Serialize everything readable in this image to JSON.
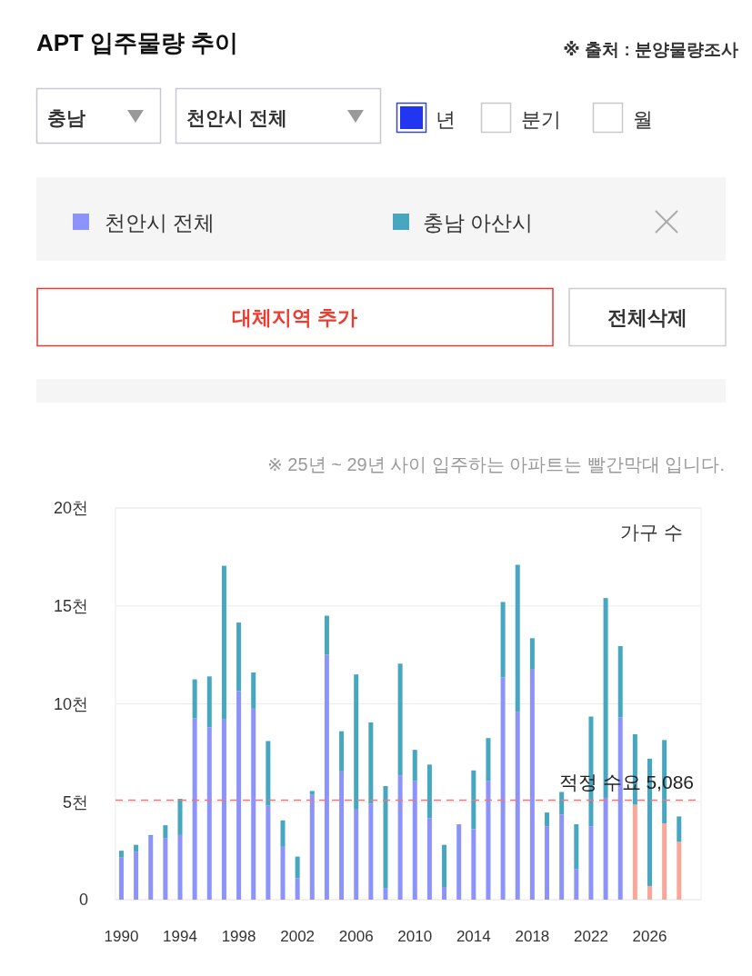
{
  "chart_data": {
    "type": "bar",
    "title": "APT 입주물량 추이",
    "ylabel": "가구 수",
    "annotations": [
      "※ 출처 : 분양물량조사",
      "충남",
      "천안시 전체",
      "년",
      "분기",
      "월",
      "대체지역 추가",
      "전체삭제",
      "※ 25년 ~ 29년 사이 입주하는 아파트는 빨간막대 입니다."
    ],
    "x": [
      1990,
      1991,
      1992,
      1993,
      1994,
      1995,
      1996,
      1997,
      1998,
      1999,
      2000,
      2001,
      2002,
      2003,
      2004,
      2005,
      2006,
      2007,
      2008,
      2009,
      2010,
      2011,
      2012,
      2013,
      2014,
      2015,
      2016,
      2017,
      2018,
      2019,
      2020,
      2021,
      2022,
      2023,
      2024,
      2025,
      2026,
      2027,
      2028
    ],
    "xlim": [
      1989.6,
      2029.5
    ],
    "xticks": [
      1990,
      1994,
      1998,
      2002,
      2006,
      2010,
      2014,
      2018,
      2022,
      2026
    ],
    "ylim": [
      0,
      20
    ],
    "yticks": [
      {
        "value": 0,
        "label": "0"
      },
      {
        "value": 5,
        "label": "5천"
      },
      {
        "value": 10,
        "label": "10천"
      },
      {
        "value": 15,
        "label": "15천"
      },
      {
        "value": 20,
        "label": "20천"
      }
    ],
    "stacked": true,
    "grid": "y",
    "legend": "top",
    "series": [
      {
        "name": "천안시 전체",
        "color": "#8c94fc",
        "colors": [
          "#8c94fc",
          "#8c94fc",
          "#8c94fc",
          "#8c94fc",
          "#8c94fc",
          "#8c94fc",
          "#8c94fc",
          "#8c94fc",
          "#8c94fc",
          "#8c94fc",
          "#8c94fc",
          "#8c94fc",
          "#8c94fc",
          "#8c94fc",
          "#8c94fc",
          "#8c94fc",
          "#8c94fc",
          "#8c94fc",
          "#8c94fc",
          "#8c94fc",
          "#8c94fc",
          "#8c94fc",
          "#8c94fc",
          "#8c94fc",
          "#8c94fc",
          "#8c94fc",
          "#8c94fc",
          "#8c94fc",
          "#8c94fc",
          "#8c94fc",
          "#8c94fc",
          "#8c94fc",
          "#8c94fc",
          "#8c94fc",
          "#8c94fc",
          "#f7a898",
          "#f7a898",
          "#f7a898",
          "#f7a898"
        ],
        "values": [
          2.15,
          2.45,
          3.25,
          3.15,
          3.3,
          9.25,
          8.8,
          9.2,
          10.65,
          9.75,
          4.8,
          2.7,
          1.1,
          5.35,
          12.5,
          6.55,
          4.6,
          4.9,
          0.6,
          6.35,
          6.05,
          4.15,
          0.65,
          3.85,
          3.6,
          6.05,
          11.35,
          9.6,
          11.75,
          3.75,
          4.35,
          1.55,
          3.75,
          5.2,
          9.3,
          4.85,
          0.7,
          3.9,
          2.95
        ]
      },
      {
        "name": "충남 아산시",
        "color": "#47a6c0",
        "values": [
          0.35,
          0.35,
          0.05,
          0.65,
          1.85,
          2.0,
          2.6,
          7.85,
          3.5,
          1.85,
          3.3,
          1.35,
          1.1,
          0.2,
          2.0,
          2.05,
          6.9,
          4.15,
          5.2,
          5.7,
          1.6,
          2.75,
          2.15,
          0,
          3.0,
          2.2,
          3.85,
          7.5,
          1.6,
          0.7,
          1.15,
          2.3,
          5.6,
          10.2,
          3.65,
          3.6,
          6.5,
          4.25,
          1.3
        ]
      }
    ],
    "ref_lines": [
      {
        "axis": "y",
        "value": 5.086,
        "label": "적정 수요 5,086",
        "color": "#ee7777",
        "line_style": "dashed"
      }
    ]
  }
}
